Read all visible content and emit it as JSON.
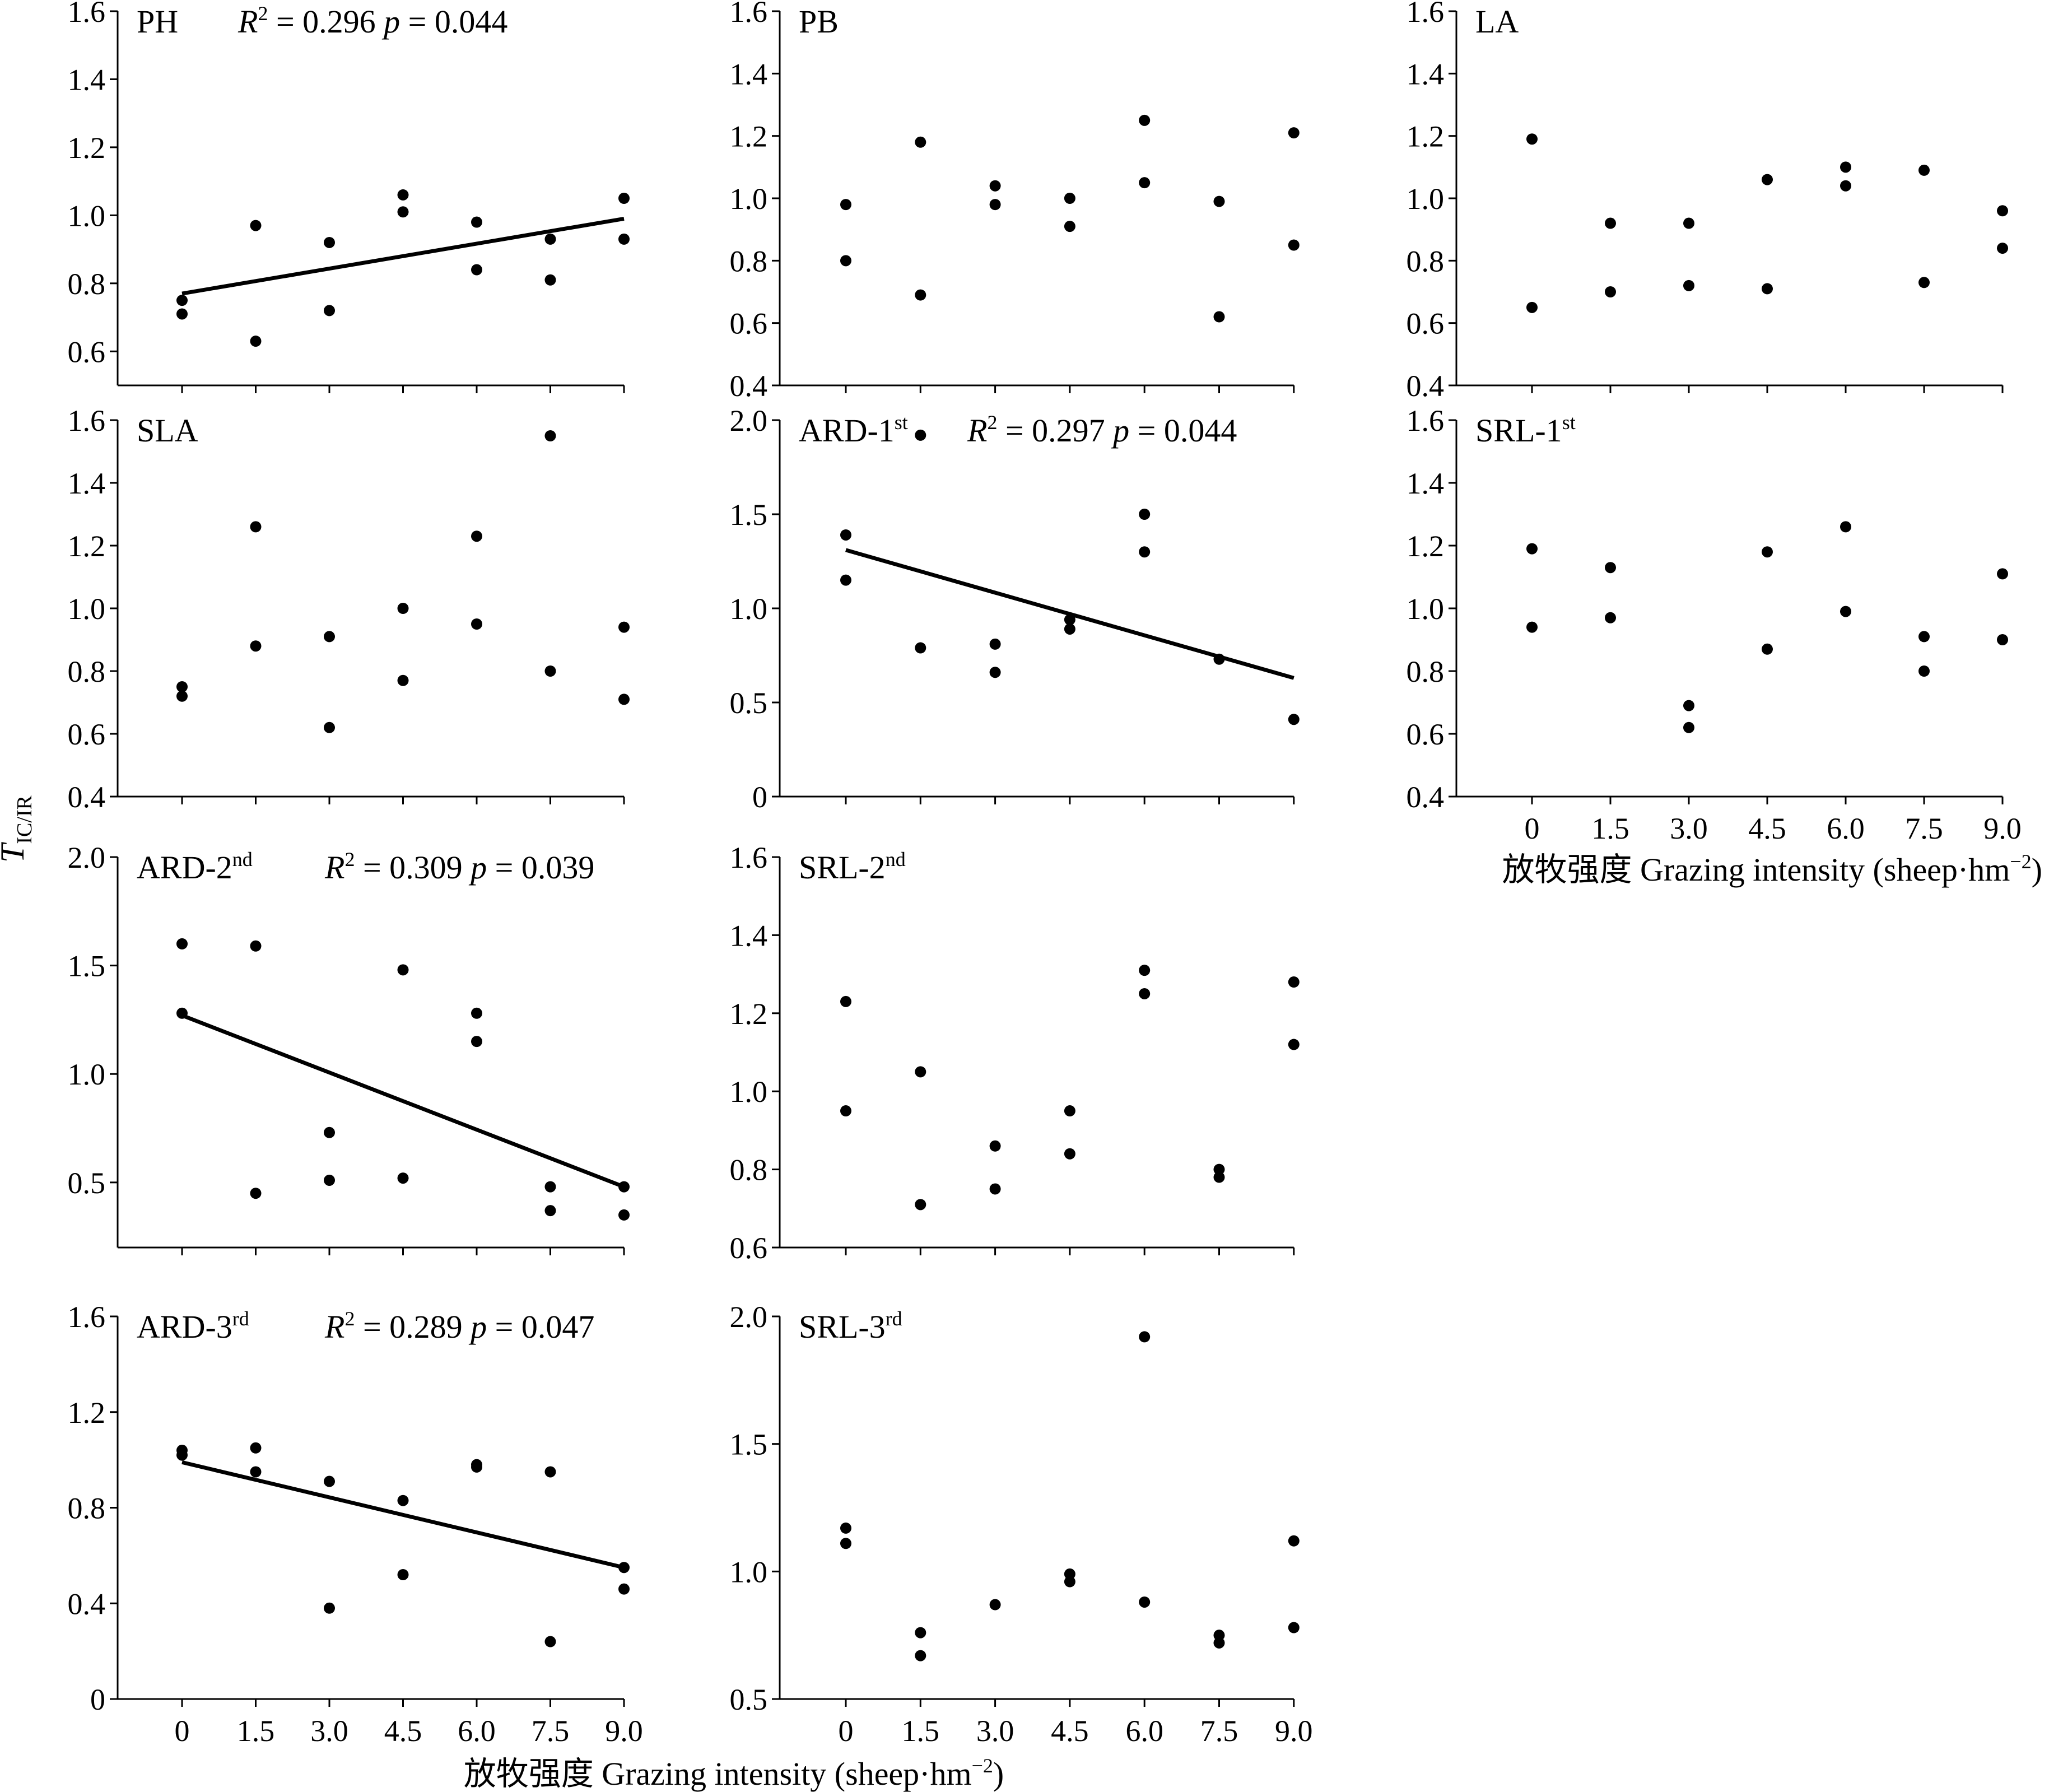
{
  "figure": {
    "ylabel_main": "T",
    "ylabel_sub": "IC/IR",
    "xlabel": "放牧强度 Grazing intensity (sheep·hm",
    "xlabel_sup": "−2",
    "xlabel_close": ")",
    "x_ticks": [
      "0",
      "1.5",
      "3.0",
      "4.5",
      "6.0",
      "7.5",
      "9.0"
    ]
  },
  "chart_data": [
    {
      "type": "scatter",
      "label": "PH",
      "label_sup": "",
      "show_x_ticks": false,
      "stats": {
        "r2": "0.296",
        "p": "0.044"
      },
      "ylim": [
        0.5,
        1.6
      ],
      "y_ticks": [
        "0.6",
        "0.8",
        "1.0",
        "1.2",
        "1.4",
        "1.6"
      ],
      "points": [
        [
          0,
          0.75
        ],
        [
          0,
          0.71
        ],
        [
          1.5,
          0.97
        ],
        [
          1.5,
          0.63
        ],
        [
          3.0,
          0.92
        ],
        [
          3.0,
          0.72
        ],
        [
          4.5,
          1.06
        ],
        [
          4.5,
          1.01
        ],
        [
          6.0,
          0.98
        ],
        [
          6.0,
          0.84
        ],
        [
          7.5,
          0.93
        ],
        [
          7.5,
          0.81
        ],
        [
          9.0,
          1.05
        ],
        [
          9.0,
          0.93
        ]
      ],
      "fit": [
        [
          0,
          0.77
        ],
        [
          9.0,
          0.99
        ]
      ]
    },
    {
      "type": "scatter",
      "label": "PB",
      "label_sup": "",
      "show_x_ticks": false,
      "ylim": [
        0.4,
        1.6
      ],
      "y_ticks": [
        "0.4",
        "0.6",
        "0.8",
        "1.0",
        "1.2",
        "1.4",
        "1.6"
      ],
      "points": [
        [
          0,
          0.98
        ],
        [
          0,
          0.8
        ],
        [
          1.5,
          1.18
        ],
        [
          1.5,
          0.69
        ],
        [
          3.0,
          1.04
        ],
        [
          3.0,
          0.98
        ],
        [
          4.5,
          1.0
        ],
        [
          4.5,
          0.91
        ],
        [
          6.0,
          1.25
        ],
        [
          6.0,
          1.05
        ],
        [
          7.5,
          0.99
        ],
        [
          7.5,
          0.62
        ],
        [
          9.0,
          1.21
        ],
        [
          9.0,
          0.85
        ]
      ]
    },
    {
      "type": "scatter",
      "label": "LA",
      "label_sup": "",
      "show_x_ticks": false,
      "ylim": [
        0.4,
        1.6
      ],
      "y_ticks": [
        "0.4",
        "0.6",
        "0.8",
        "1.0",
        "1.2",
        "1.4",
        "1.6"
      ],
      "points": [
        [
          0,
          1.19
        ],
        [
          0,
          0.65
        ],
        [
          1.5,
          0.92
        ],
        [
          1.5,
          0.7
        ],
        [
          3.0,
          0.92
        ],
        [
          3.0,
          0.72
        ],
        [
          4.5,
          1.06
        ],
        [
          4.5,
          0.71
        ],
        [
          6.0,
          1.1
        ],
        [
          6.0,
          1.04
        ],
        [
          7.5,
          1.09
        ],
        [
          7.5,
          0.73
        ],
        [
          9.0,
          0.96
        ],
        [
          9.0,
          0.84
        ]
      ]
    },
    {
      "type": "scatter",
      "label": "SLA",
      "label_sup": "",
      "show_x_ticks": false,
      "ylim": [
        0.4,
        1.6
      ],
      "y_ticks": [
        "0.4",
        "0.6",
        "0.8",
        "1.0",
        "1.2",
        "1.4",
        "1.6"
      ],
      "points": [
        [
          0,
          0.75
        ],
        [
          0,
          0.72
        ],
        [
          1.5,
          1.26
        ],
        [
          1.5,
          0.88
        ],
        [
          3.0,
          0.91
        ],
        [
          3.0,
          0.62
        ],
        [
          4.5,
          1.0
        ],
        [
          4.5,
          0.77
        ],
        [
          6.0,
          1.23
        ],
        [
          6.0,
          0.95
        ],
        [
          7.5,
          1.55
        ],
        [
          7.5,
          0.8
        ],
        [
          9.0,
          0.94
        ],
        [
          9.0,
          0.71
        ]
      ]
    },
    {
      "type": "scatter",
      "label": "ARD-1",
      "label_sup": "st",
      "show_x_ticks": false,
      "stats": {
        "r2": "0.297",
        "p": "0.044"
      },
      "ylim": [
        0,
        2.0
      ],
      "y_ticks": [
        "0",
        "0.5",
        "1.0",
        "1.5",
        "2.0"
      ],
      "points": [
        [
          0,
          1.39
        ],
        [
          0,
          1.15
        ],
        [
          1.5,
          1.92
        ],
        [
          1.5,
          0.79
        ],
        [
          3.0,
          0.81
        ],
        [
          3.0,
          0.66
        ],
        [
          4.5,
          0.94
        ],
        [
          4.5,
          0.89
        ],
        [
          6.0,
          1.5
        ],
        [
          6.0,
          1.3
        ],
        [
          7.5,
          0.73
        ],
        [
          9.0,
          0.41
        ]
      ],
      "fit": [
        [
          0,
          1.31
        ],
        [
          9.0,
          0.63
        ]
      ]
    },
    {
      "type": "scatter",
      "label": "SRL-1",
      "label_sup": "st",
      "show_x_ticks": true,
      "ylim": [
        0.4,
        1.6
      ],
      "y_ticks": [
        "0.4",
        "0.6",
        "0.8",
        "1.0",
        "1.2",
        "1.4",
        "1.6"
      ],
      "points": [
        [
          0,
          1.19
        ],
        [
          0,
          0.94
        ],
        [
          1.5,
          1.13
        ],
        [
          1.5,
          0.97
        ],
        [
          3.0,
          0.69
        ],
        [
          3.0,
          0.62
        ],
        [
          4.5,
          1.18
        ],
        [
          4.5,
          0.87
        ],
        [
          6.0,
          1.26
        ],
        [
          6.0,
          0.99
        ],
        [
          7.5,
          0.91
        ],
        [
          7.5,
          0.8
        ],
        [
          9.0,
          1.11
        ],
        [
          9.0,
          0.9
        ]
      ]
    },
    {
      "type": "scatter",
      "label": "ARD-2",
      "label_sup": "nd",
      "show_x_ticks": false,
      "stats": {
        "r2": "0.309",
        "p": "0.039"
      },
      "ylim": [
        0.2,
        2.0
      ],
      "y_ticks": [
        "0.5",
        "1.0",
        "1.5",
        "2.0"
      ],
      "points": [
        [
          0,
          1.6
        ],
        [
          0,
          1.28
        ],
        [
          1.5,
          1.59
        ],
        [
          1.5,
          0.45
        ],
        [
          3.0,
          0.73
        ],
        [
          3.0,
          0.51
        ],
        [
          4.5,
          1.48
        ],
        [
          4.5,
          0.52
        ],
        [
          6.0,
          1.28
        ],
        [
          6.0,
          1.15
        ],
        [
          7.5,
          0.48
        ],
        [
          7.5,
          0.37
        ],
        [
          9.0,
          0.48
        ],
        [
          9.0,
          0.35
        ]
      ],
      "fit": [
        [
          0,
          1.27
        ],
        [
          9.0,
          0.48
        ]
      ]
    },
    {
      "type": "scatter",
      "label": "SRL-2",
      "label_sup": "nd",
      "show_x_ticks": false,
      "ylim": [
        0.6,
        1.6
      ],
      "y_ticks": [
        "0.6",
        "0.8",
        "1.0",
        "1.2",
        "1.4",
        "1.6"
      ],
      "points": [
        [
          0,
          1.23
        ],
        [
          0,
          0.95
        ],
        [
          1.5,
          1.05
        ],
        [
          1.5,
          0.71
        ],
        [
          3.0,
          0.86
        ],
        [
          3.0,
          0.75
        ],
        [
          4.5,
          0.95
        ],
        [
          4.5,
          0.84
        ],
        [
          6.0,
          1.31
        ],
        [
          6.0,
          1.25
        ],
        [
          7.5,
          0.8
        ],
        [
          7.5,
          0.78
        ],
        [
          9.0,
          1.28
        ],
        [
          9.0,
          1.12
        ]
      ]
    },
    {
      "type": "scatter",
      "label": "ARD-3",
      "label_sup": "rd",
      "show_x_ticks": true,
      "stats": {
        "r2": "0.289",
        "p": "0.047"
      },
      "ylim": [
        0,
        1.6
      ],
      "y_ticks": [
        "0",
        "0.4",
        "0.8",
        "1.2",
        "1.6"
      ],
      "points": [
        [
          0,
          1.04
        ],
        [
          0,
          1.02
        ],
        [
          1.5,
          1.05
        ],
        [
          1.5,
          0.95
        ],
        [
          3.0,
          0.91
        ],
        [
          3.0,
          0.38
        ],
        [
          4.5,
          0.83
        ],
        [
          4.5,
          0.52
        ],
        [
          6.0,
          0.98
        ],
        [
          6.0,
          0.97
        ],
        [
          7.5,
          0.95
        ],
        [
          7.5,
          0.24
        ],
        [
          9.0,
          0.55
        ],
        [
          9.0,
          0.46
        ]
      ],
      "fit": [
        [
          0,
          0.99
        ],
        [
          9.0,
          0.55
        ]
      ]
    },
    {
      "type": "scatter",
      "label": "SRL-3",
      "label_sup": "rd",
      "show_x_ticks": true,
      "ylim": [
        0.5,
        2.0
      ],
      "y_ticks": [
        "0.5",
        "1.0",
        "1.5",
        "2.0"
      ],
      "points": [
        [
          0,
          1.17
        ],
        [
          0,
          1.11
        ],
        [
          1.5,
          0.76
        ],
        [
          1.5,
          0.67
        ],
        [
          3.0,
          0.87
        ],
        [
          4.5,
          0.99
        ],
        [
          4.5,
          0.96
        ],
        [
          6.0,
          1.92
        ],
        [
          6.0,
          0.88
        ],
        [
          7.5,
          0.75
        ],
        [
          7.5,
          0.72
        ],
        [
          9.0,
          1.12
        ],
        [
          9.0,
          0.78
        ]
      ]
    }
  ]
}
